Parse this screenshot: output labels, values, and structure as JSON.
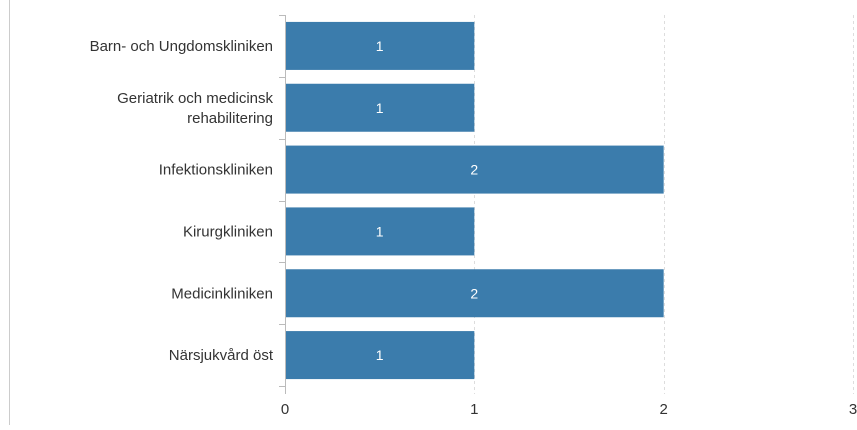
{
  "chart_data": {
    "type": "bar",
    "orientation": "horizontal",
    "title": "",
    "xlabel": "",
    "ylabel": "",
    "categories": [
      "Barn- och Ungdomskliniken",
      "Geriatrik och medicinsk rehabilitering",
      "Infektionskliniken",
      "Kirurgkliniken",
      "Medicinkliniken",
      "Närsjukvård öst"
    ],
    "category_lines": [
      [
        "Barn- och Ungdomskliniken"
      ],
      [
        "Geriatrik och medicinsk",
        "rehabilitering"
      ],
      [
        "Infektionskliniken"
      ],
      [
        "Kirurgkliniken"
      ],
      [
        "Medicinkliniken"
      ],
      [
        "Närsjukvård öst"
      ]
    ],
    "values": [
      1,
      1,
      2,
      1,
      2,
      1
    ],
    "xlim": [
      0,
      3
    ],
    "x_ticks": [
      0,
      1,
      2,
      3
    ],
    "grid": "vertical-dashed",
    "legend": "none",
    "data_labels": "inside-bar",
    "colors": {
      "bar": "#3b7cac",
      "bar_label": "#ffffff",
      "axis_text": "#333333",
      "axis_line": "#cccccc",
      "grid": "#dddddd",
      "tick": "#bbbbbb"
    }
  }
}
